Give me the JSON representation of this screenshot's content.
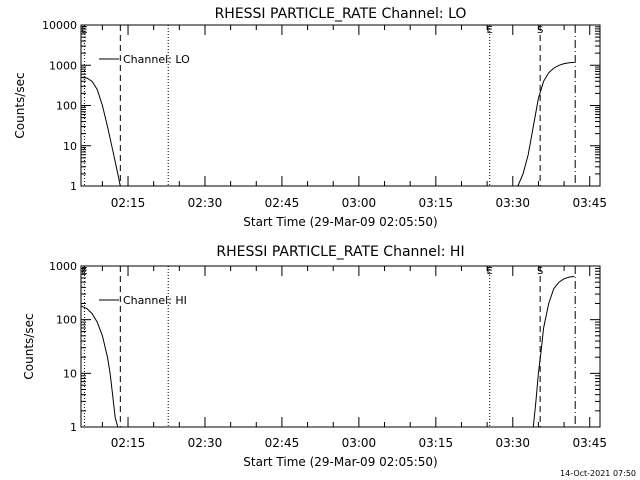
{
  "footer_timestamp": "14-Oct-2021 07:50",
  "chart_data": [
    {
      "type": "line",
      "title": "RHESSI PARTICLE_RATE Channel: LO",
      "xlabel": "Start Time (29-Mar-09 02:05:50)",
      "ylabel": "Counts/sec",
      "y_scale": "log",
      "ylim": [
        1,
        10000
      ],
      "xlim": [
        "02:05:50",
        "03:47:00"
      ],
      "x_ticks": [
        "02:15",
        "02:30",
        "02:45",
        "03:00",
        "03:15",
        "03:30",
        "03:45"
      ],
      "y_ticks": [
        "1",
        "10",
        "100",
        "1000",
        "10000"
      ],
      "legend": "Channel: LO",
      "legend_position": "top-left",
      "grid": false,
      "markers": [
        {
          "label": "E",
          "time": "02:06:30",
          "style": "dotted"
        },
        {
          "label": "",
          "time": "02:13:30",
          "style": "dashed"
        },
        {
          "label": "",
          "time": "02:22:50",
          "style": "dotted"
        },
        {
          "label": "E",
          "time": "03:25:30",
          "style": "dotted"
        },
        {
          "label": "S",
          "time": "03:35:20",
          "style": "dashed"
        },
        {
          "label": "",
          "time": "03:42:10",
          "style": "dashdot"
        }
      ],
      "series": [
        {
          "x": [
            "02:05:50",
            "02:07:00",
            "02:08:00",
            "02:09:00",
            "02:10:00",
            "02:11:00",
            "02:12:00",
            "02:13:00",
            "02:13:30",
            "02:14:00"
          ],
          "y": [
            500,
            480,
            400,
            250,
            100,
            30,
            8,
            2,
            1,
            0.9
          ]
        },
        {
          "x": [
            "03:31:00",
            "03:32:00",
            "03:33:00",
            "03:34:00",
            "03:35:00",
            "03:36:00",
            "03:37:00",
            "03:38:00",
            "03:39:00",
            "03:40:00",
            "03:41:00",
            "03:42:00"
          ],
          "y": [
            1,
            2,
            6,
            30,
            150,
            400,
            650,
            850,
            1000,
            1100,
            1150,
            1180
          ]
        }
      ]
    },
    {
      "type": "line",
      "title": "RHESSI PARTICLE_RATE Channel: HI",
      "xlabel": "Start Time (29-Mar-09 02:05:50)",
      "ylabel": "Counts/sec",
      "y_scale": "log",
      "ylim": [
        1,
        1000
      ],
      "xlim": [
        "02:05:50",
        "03:47:00"
      ],
      "x_ticks": [
        "02:15",
        "02:30",
        "02:45",
        "03:00",
        "03:15",
        "03:30",
        "03:45"
      ],
      "y_ticks": [
        "1",
        "10",
        "100",
        "1000"
      ],
      "legend": "Channel: HI",
      "legend_position": "top-left",
      "grid": false,
      "markers": [
        {
          "label": "E",
          "time": "02:06:30",
          "style": "dotted"
        },
        {
          "label": "",
          "time": "02:13:30",
          "style": "dashed"
        },
        {
          "label": "",
          "time": "02:22:50",
          "style": "dotted"
        },
        {
          "label": "E",
          "time": "03:25:30",
          "style": "dotted"
        },
        {
          "label": "S",
          "time": "03:35:20",
          "style": "dashed"
        },
        {
          "label": "",
          "time": "03:42:10",
          "style": "dashdot"
        }
      ],
      "series": [
        {
          "x": [
            "02:05:50",
            "02:07:00",
            "02:08:00",
            "02:09:00",
            "02:10:00",
            "02:11:00",
            "02:11:30",
            "02:12:00",
            "02:12:30",
            "02:13:00"
          ],
          "y": [
            180,
            160,
            130,
            90,
            50,
            20,
            10,
            4,
            1.5,
            1
          ]
        },
        {
          "x": [
            "03:34:00",
            "03:34:30",
            "03:35:00",
            "03:35:30",
            "03:36:00",
            "03:37:00",
            "03:38:00",
            "03:39:00",
            "03:40:00",
            "03:41:00",
            "03:42:00"
          ],
          "y": [
            1,
            3,
            10,
            25,
            70,
            200,
            380,
            500,
            580,
            620,
            640
          ]
        }
      ]
    }
  ]
}
